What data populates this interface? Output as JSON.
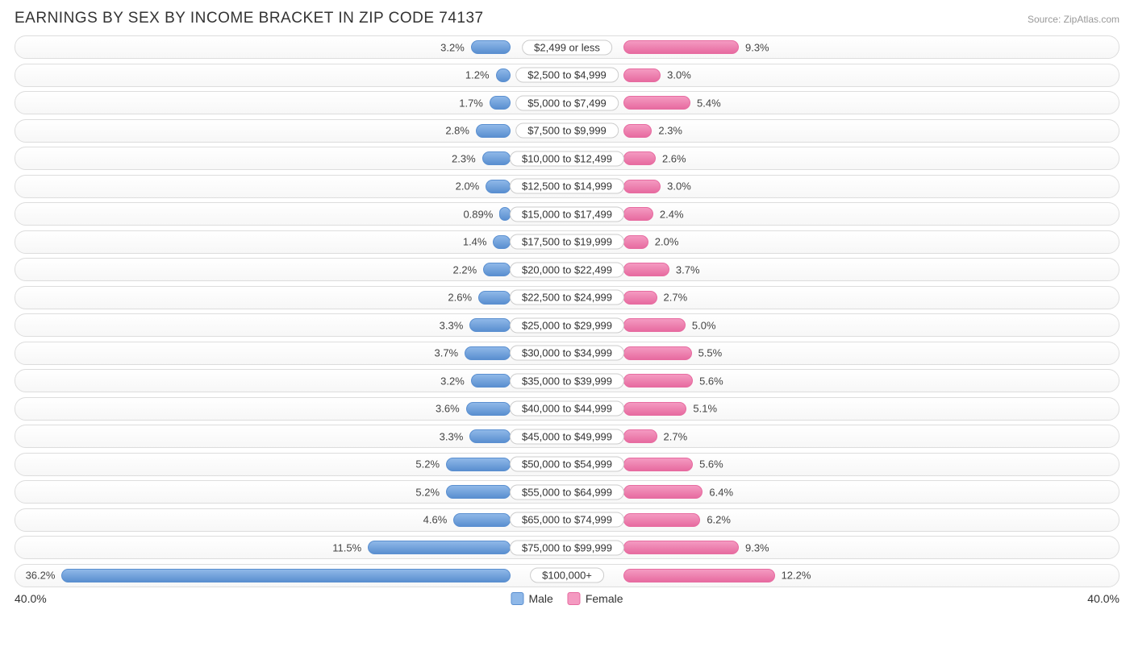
{
  "title": "EARNINGS BY SEX BY INCOME BRACKET IN ZIP CODE 74137",
  "source": "Source: ZipAtlas.com",
  "chart": {
    "type": "diverging-bar",
    "axis_max": 40.0,
    "axis_label_left": "40.0%",
    "axis_label_right": "40.0%",
    "male_color_fill": "#8fb8e8",
    "male_color_border": "#5a8fd0",
    "female_color_fill": "#f49ac1",
    "female_color_border": "#e76ba0",
    "track_border": "#dddddd",
    "label_bg": "#ffffff",
    "label_border": "#cccccc",
    "rows": [
      {
        "bracket": "$2,499 or less",
        "male": 3.2,
        "female": 9.3
      },
      {
        "bracket": "$2,500 to $4,999",
        "male": 1.2,
        "female": 3.0
      },
      {
        "bracket": "$5,000 to $7,499",
        "male": 1.7,
        "female": 5.4
      },
      {
        "bracket": "$7,500 to $9,999",
        "male": 2.8,
        "female": 2.3
      },
      {
        "bracket": "$10,000 to $12,499",
        "male": 2.3,
        "female": 2.6
      },
      {
        "bracket": "$12,500 to $14,999",
        "male": 2.0,
        "female": 3.0
      },
      {
        "bracket": "$15,000 to $17,499",
        "male": 0.89,
        "female": 2.4
      },
      {
        "bracket": "$17,500 to $19,999",
        "male": 1.4,
        "female": 2.0
      },
      {
        "bracket": "$20,000 to $22,499",
        "male": 2.2,
        "female": 3.7
      },
      {
        "bracket": "$22,500 to $24,999",
        "male": 2.6,
        "female": 2.7
      },
      {
        "bracket": "$25,000 to $29,999",
        "male": 3.3,
        "female": 5.0
      },
      {
        "bracket": "$30,000 to $34,999",
        "male": 3.7,
        "female": 5.5
      },
      {
        "bracket": "$35,000 to $39,999",
        "male": 3.2,
        "female": 5.6
      },
      {
        "bracket": "$40,000 to $44,999",
        "male": 3.6,
        "female": 5.1
      },
      {
        "bracket": "$45,000 to $49,999",
        "male": 3.3,
        "female": 2.7
      },
      {
        "bracket": "$50,000 to $54,999",
        "male": 5.2,
        "female": 5.6
      },
      {
        "bracket": "$55,000 to $64,999",
        "male": 5.2,
        "female": 6.4
      },
      {
        "bracket": "$65,000 to $74,999",
        "male": 4.6,
        "female": 6.2
      },
      {
        "bracket": "$75,000 to $99,999",
        "male": 11.5,
        "female": 9.3
      },
      {
        "bracket": "$100,000+",
        "male": 36.2,
        "female": 12.2
      }
    ]
  },
  "legend": {
    "male": "Male",
    "female": "Female"
  }
}
